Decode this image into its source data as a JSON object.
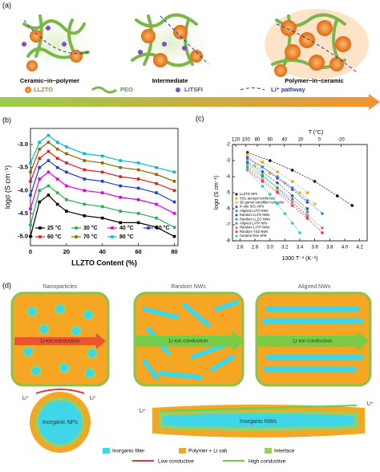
{
  "panel_a": {
    "label": "(a)",
    "captions": [
      "Ceramic−in−polymer",
      "Intermediate",
      "Polymer−in−ceramic"
    ],
    "legend": [
      "LLZTO",
      "PEO",
      "LiTSFI",
      "Li⁺ pathway"
    ]
  },
  "chart_data": [
    {
      "type": "line",
      "label": "(b)",
      "xlabel": "LLZTO Content (%)",
      "ylabel": "logσ (S cm⁻¹)",
      "xlim": [
        0,
        82
      ],
      "ylim": [
        -5.2,
        -2.65
      ],
      "xticks": [
        0,
        20,
        40,
        60,
        80
      ],
      "yticks": [
        {
          "value": -5,
          "label": "-5.0"
        },
        -4.5,
        {
          "value": -4,
          "label": "-4.0"
        },
        -3.5,
        {
          "value": -3,
          "label": "-3.0"
        }
      ],
      "x": [
        0,
        5,
        10,
        15,
        20,
        30,
        40,
        50,
        60,
        70,
        80
      ],
      "series": [
        {
          "name": "25 °C",
          "color": "#000000",
          "values": [
            -5.0,
            -4.25,
            -4.1,
            -4.3,
            -4.45,
            -4.55,
            -4.6,
            -4.7,
            -4.7,
            -4.8,
            -5.0
          ]
        },
        {
          "name": "30 °C",
          "color": "#22b14c",
          "values": [
            -4.75,
            -4.0,
            -3.9,
            -4.05,
            -4.2,
            -4.3,
            -4.35,
            -4.45,
            -4.5,
            -4.6,
            -4.8
          ]
        },
        {
          "name": "40 °C",
          "color": "#e000e0",
          "values": [
            -4.4,
            -3.75,
            -3.6,
            -3.75,
            -3.9,
            -4.0,
            -4.05,
            -4.15,
            -4.2,
            -4.3,
            -4.5
          ]
        },
        {
          "name": "50 °C",
          "color": "#1f3fd0",
          "values": [
            -4.1,
            -3.5,
            -3.35,
            -3.5,
            -3.6,
            -3.75,
            -3.8,
            -3.9,
            -3.95,
            -4.05,
            -4.25
          ]
        },
        {
          "name": "60 °C",
          "color": "#e02020",
          "values": [
            -3.8,
            -3.3,
            -3.15,
            -3.3,
            -3.4,
            -3.55,
            -3.6,
            -3.7,
            -3.75,
            -3.85,
            -4.0
          ]
        },
        {
          "name": "70 °C",
          "color": "#8b6a00",
          "values": [
            -3.6,
            -3.1,
            -2.95,
            -3.1,
            -3.2,
            -3.35,
            -3.4,
            -3.5,
            -3.55,
            -3.65,
            -3.8
          ]
        },
        {
          "name": "80 °C",
          "color": "#00bcd4",
          "values": [
            -3.4,
            -2.95,
            -2.8,
            -2.95,
            -3.05,
            -3.2,
            -3.25,
            -3.35,
            -3.4,
            -3.5,
            -3.6
          ]
        }
      ]
    },
    {
      "type": "scatter",
      "label": "(c)",
      "xlabel": "1000 T⁻¹ (K⁻¹)",
      "ylabel": "logσ (S cm⁻¹)",
      "x2label": "T (°C)",
      "xlim": [
        2.5,
        4.3
      ],
      "ylim": [
        -8,
        -2
      ],
      "xticks": [
        2.6,
        2.8,
        {
          "value": 3,
          "label": "3.0"
        },
        3.2,
        3.4,
        3.6,
        3.8,
        {
          "value": 4,
          "label": "4.0"
        },
        4.2
      ],
      "yticks": [
        -2,
        -3,
        -4,
        -5,
        -6,
        -7,
        -8
      ],
      "x2ticks": [
        120,
        100,
        80,
        60,
        40,
        20,
        0,
        -20
      ],
      "series": [
        {
          "name": "LLZTO NPs",
          "color": "#000000",
          "x": [
            2.7,
            3.0,
            3.3,
            3.6,
            3.9,
            4.1
          ],
          "values": [
            -2.5,
            -3.0,
            -3.6,
            -4.3,
            -5.2,
            -5.8
          ]
        },
        {
          "name": "SiO₂ aerogel reinforced",
          "color": "#ff9800",
          "x": [
            2.7,
            2.9,
            3.1,
            3.3,
            3.5
          ],
          "values": [
            -2.6,
            -3.1,
            -3.7,
            -4.3,
            -5.0
          ]
        },
        {
          "name": "3D garnet nanofiber networks",
          "color": "#c0ca33",
          "x": [
            2.8,
            3.0,
            3.2,
            3.4,
            3.6
          ],
          "values": [
            -3.3,
            -3.8,
            -4.4,
            -5.0,
            -5.7
          ]
        },
        {
          "name": "In situ SiO₂ NPs",
          "color": "#8e24aa",
          "x": [
            2.7,
            2.9,
            3.1,
            3.3,
            3.5
          ],
          "values": [
            -2.8,
            -3.4,
            -4.1,
            -4.8,
            -5.6
          ]
        },
        {
          "name": "Aligned LLTO NWs",
          "color": "#1e88e5",
          "x": [
            2.7,
            2.9,
            3.1,
            3.3,
            3.5,
            3.7
          ],
          "values": [
            -2.9,
            -3.4,
            -4.0,
            -4.7,
            -5.5,
            -6.3
          ]
        },
        {
          "name": "Random LLTO NWs",
          "color": "#3949ab",
          "x": [
            2.7,
            2.9,
            3.1,
            3.3,
            3.5
          ],
          "values": [
            -3.1,
            -3.7,
            -4.4,
            -5.2,
            -6.0
          ]
        },
        {
          "name": "Random LLZO NWs",
          "color": "#00acc1",
          "x": [
            2.7,
            2.9,
            3.1,
            3.3,
            3.5
          ],
          "values": [
            -3.2,
            -3.9,
            -4.7,
            -5.6,
            -6.5
          ]
        },
        {
          "name": "Aligned LATP NPs",
          "color": "#43a047",
          "x": [
            2.7,
            2.9,
            3.1,
            3.3,
            3.5
          ],
          "values": [
            -3.4,
            -4.0,
            -4.7,
            -5.4,
            -6.2
          ]
        },
        {
          "name": "Random LATP NWs",
          "color": "#f06292",
          "x": [
            2.7,
            2.9,
            3.1,
            3.3,
            3.5,
            3.7
          ],
          "values": [
            -3.5,
            -4.2,
            -4.9,
            -5.6,
            -6.4,
            -7.2
          ]
        },
        {
          "name": "Random YSZ NWs",
          "color": "#e53935",
          "x": [
            2.7,
            2.9,
            3.1,
            3.3,
            3.5,
            3.7
          ],
          "values": [
            -3.6,
            -4.3,
            -5.0,
            -5.8,
            -6.6,
            -7.5
          ]
        },
        {
          "name": "Ceramic-free SPE",
          "color": "#26c6da",
          "x": [
            2.7,
            2.9,
            3.0,
            3.1,
            3.2,
            3.3,
            3.4
          ],
          "values": [
            -3.6,
            -4.6,
            -5.1,
            -5.7,
            -6.3,
            -6.9,
            -7.5
          ]
        }
      ]
    }
  ],
  "panel_d": {
    "label": "(d)",
    "titles": [
      "Nanoparticles",
      "Random NWs",
      "Aligned NWs"
    ],
    "arrow_text": "Li-ion conduction",
    "np_label": "Inorganic NPs",
    "nw_label": "Inorganic NWs",
    "li": "Li⁺",
    "legend": [
      "Inorganic filler",
      "Polymer + Li salt",
      "Interface",
      "Low conductive",
      "High conductive"
    ]
  }
}
